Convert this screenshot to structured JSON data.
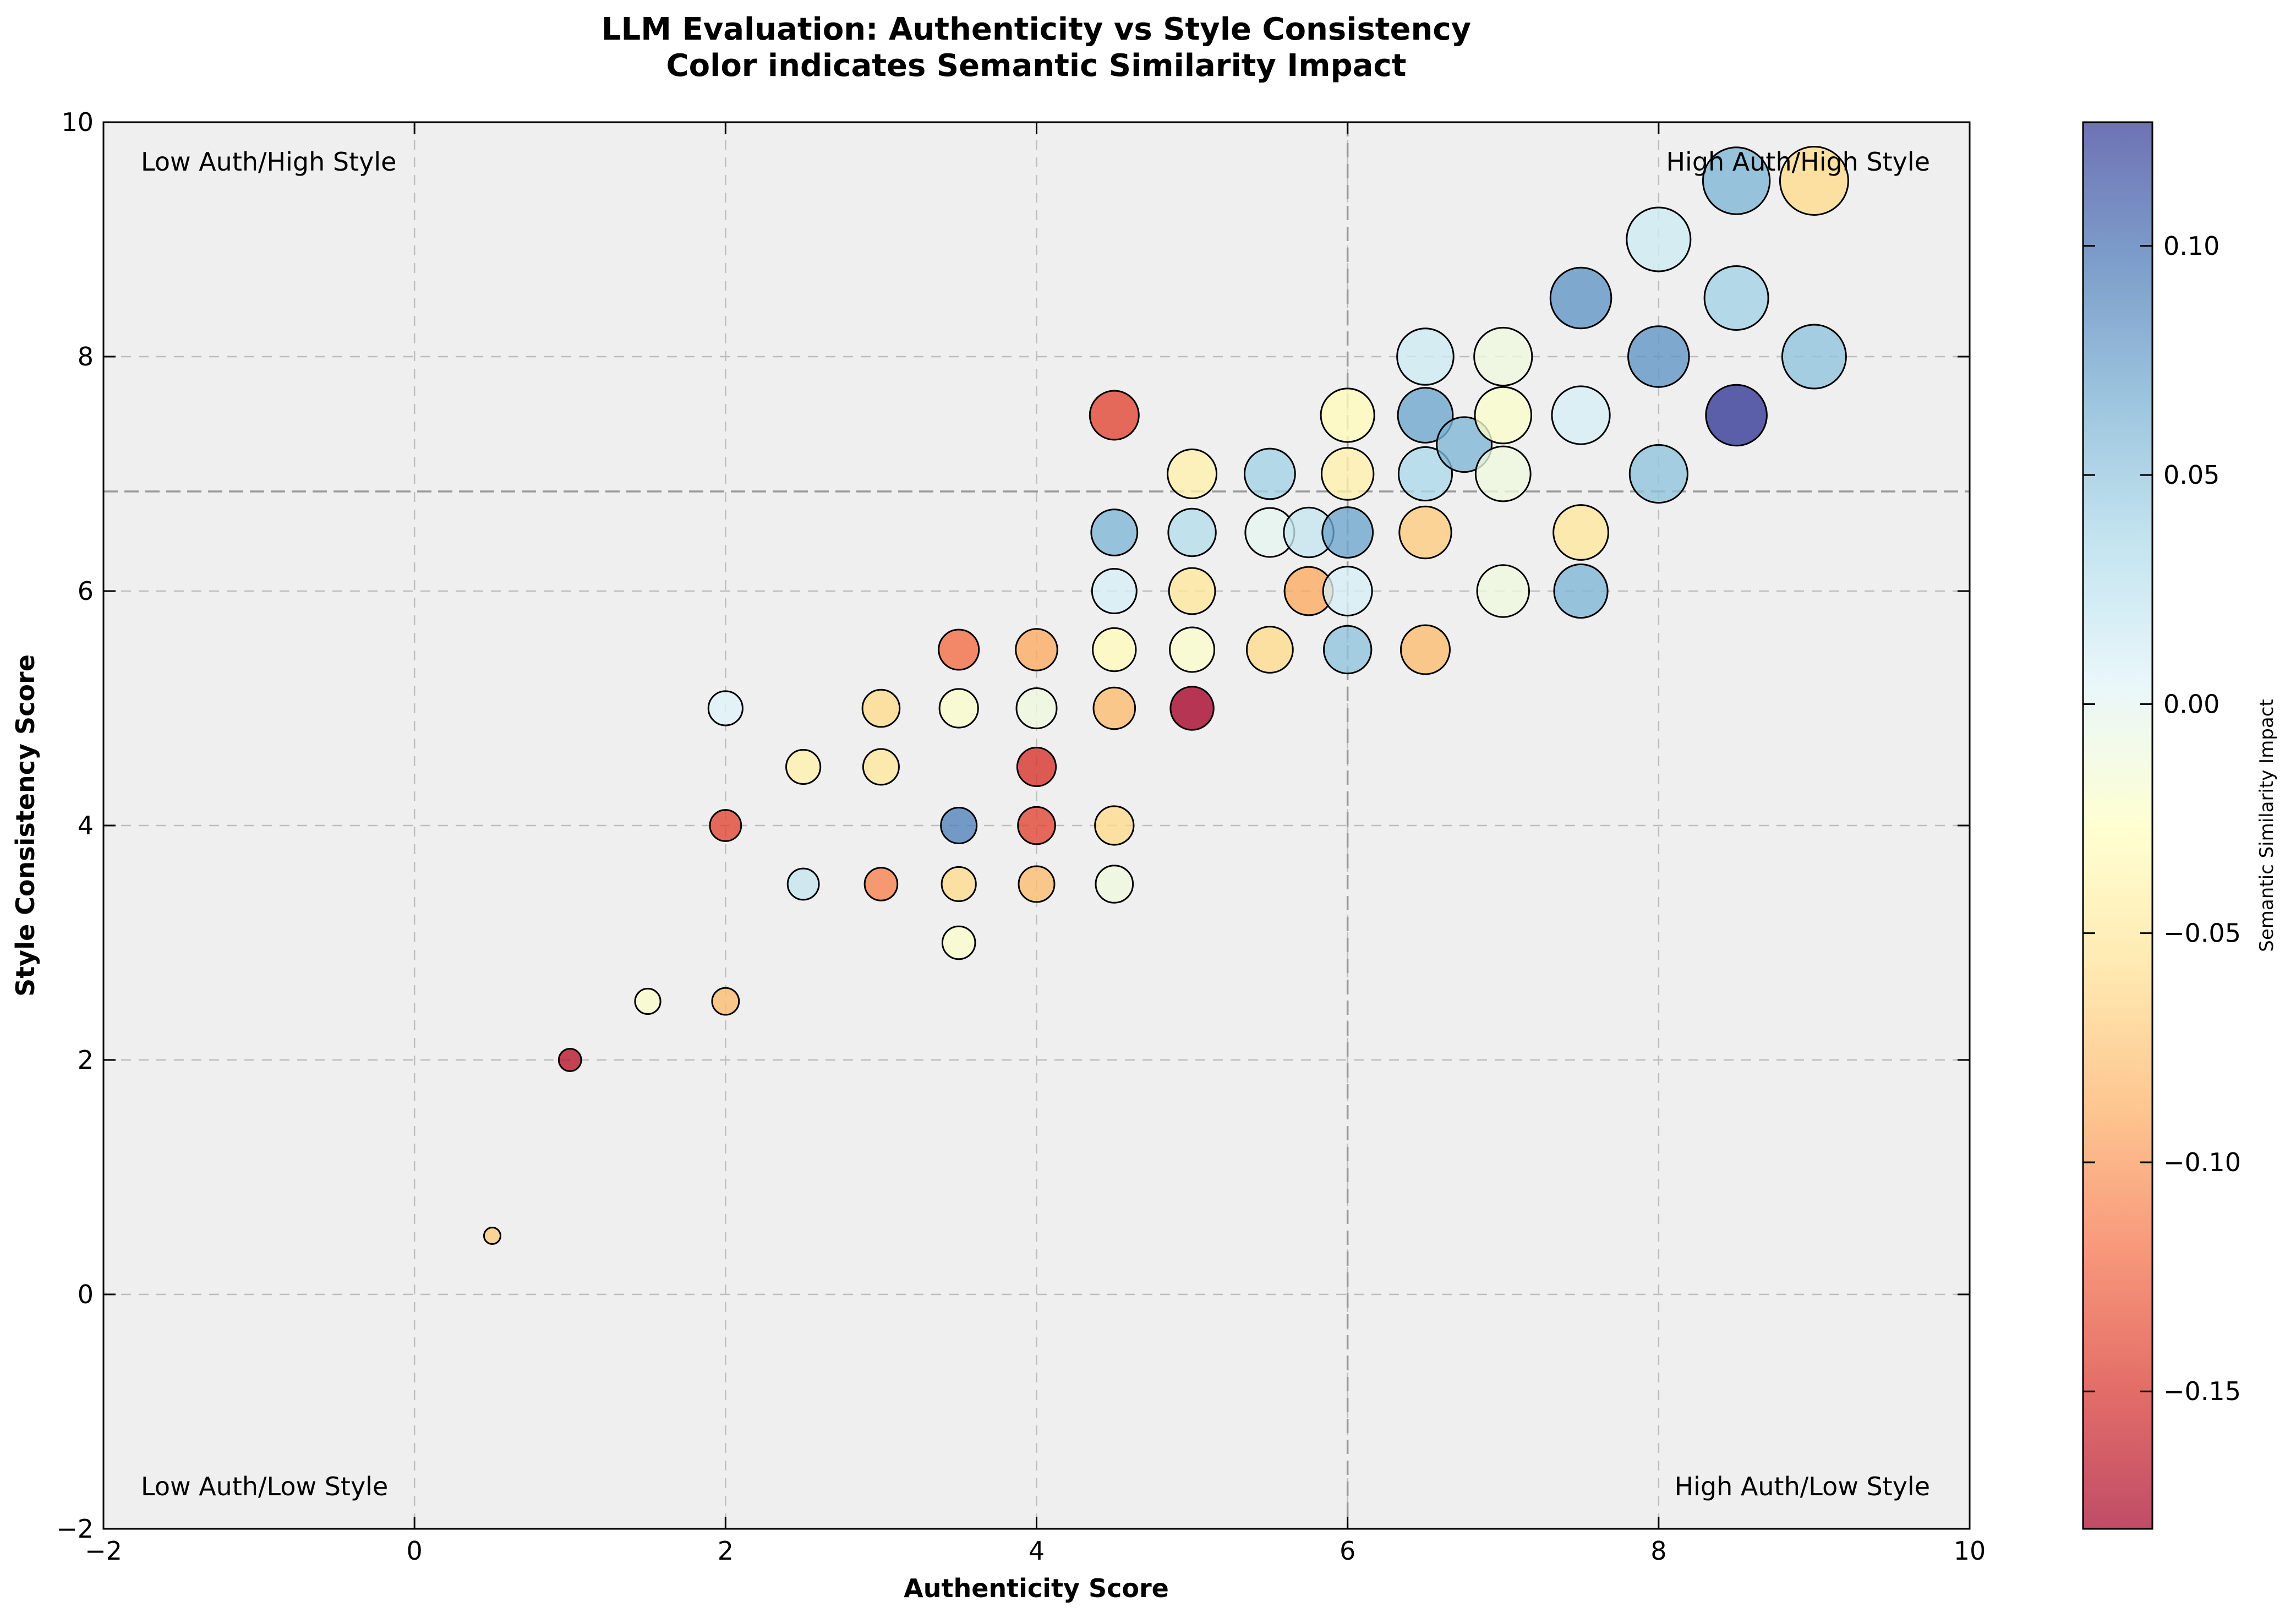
{
  "chart_data": {
    "type": "scatter",
    "title": "LLM Evaluation: Authenticity vs Style Consistency",
    "subtitle": "Color indicates Semantic Similarity Impact",
    "xlabel": "Authenticity Score",
    "ylabel": "Style Consistency Score",
    "xlim": [
      -2,
      10
    ],
    "ylim": [
      -2,
      10
    ],
    "xticks": [
      -2,
      0,
      2,
      4,
      6,
      8,
      10
    ],
    "yticks": [
      -2,
      0,
      2,
      4,
      6,
      8,
      10
    ],
    "grid": true,
    "reference_lines": {
      "x": 6.0,
      "y": 6.85
    },
    "quadrant_labels": {
      "top_left": "Low Auth/High Style",
      "top_right": "High Auth/High Style",
      "bottom_left": "Low Auth/Low Style",
      "bottom_right": "High Auth/Low Style"
    },
    "colorbar": {
      "label": "Semantic Similarity Impact",
      "range": [
        -0.18,
        0.127
      ],
      "ticks": [
        "0.10",
        "0.05",
        "0.00",
        "−0.05",
        "−0.10",
        "−0.15"
      ],
      "tick_values": [
        0.1,
        0.05,
        0.0,
        -0.05,
        -0.1,
        -0.15
      ],
      "colormap": "RdYlBu"
    },
    "points": [
      {
        "x": 0.5,
        "y": 0.5,
        "c": -0.07
      },
      {
        "x": 1.0,
        "y": 2.0,
        "c": -0.17
      },
      {
        "x": 1.5,
        "y": 2.5,
        "c": -0.02
      },
      {
        "x": 2.0,
        "y": 2.5,
        "c": -0.08
      },
      {
        "x": 2.0,
        "y": 4.0,
        "c": -0.14
      },
      {
        "x": 2.0,
        "y": 5.0,
        "c": 0.005
      },
      {
        "x": 2.5,
        "y": 3.5,
        "c": 0.02
      },
      {
        "x": 2.5,
        "y": 4.5,
        "c": -0.04
      },
      {
        "x": 3.0,
        "y": 3.5,
        "c": -0.11
      },
      {
        "x": 3.0,
        "y": 4.5,
        "c": -0.05
      },
      {
        "x": 3.0,
        "y": 5.0,
        "c": -0.06
      },
      {
        "x": 3.5,
        "y": 3.0,
        "c": -0.02
      },
      {
        "x": 3.5,
        "y": 3.5,
        "c": -0.06
      },
      {
        "x": 3.5,
        "y": 4.0,
        "c": 0.09
      },
      {
        "x": 3.5,
        "y": 5.0,
        "c": -0.02
      },
      {
        "x": 3.5,
        "y": 5.5,
        "c": -0.12
      },
      {
        "x": 4.0,
        "y": 3.5,
        "c": -0.08
      },
      {
        "x": 4.0,
        "y": 4.0,
        "c": -0.14
      },
      {
        "x": 4.0,
        "y": 4.5,
        "c": -0.15
      },
      {
        "x": 4.0,
        "y": 5.0,
        "c": -0.01
      },
      {
        "x": 4.0,
        "y": 5.5,
        "c": -0.09
      },
      {
        "x": 4.5,
        "y": 3.5,
        "c": -0.01
      },
      {
        "x": 4.5,
        "y": 4.0,
        "c": -0.06
      },
      {
        "x": 4.5,
        "y": 5.0,
        "c": -0.08
      },
      {
        "x": 4.5,
        "y": 5.5,
        "c": -0.03
      },
      {
        "x": 4.5,
        "y": 6.0,
        "c": 0.01
      },
      {
        "x": 4.5,
        "y": 6.5,
        "c": 0.06
      },
      {
        "x": 4.5,
        "y": 7.5,
        "c": -0.14
      },
      {
        "x": 5.0,
        "y": 5.0,
        "c": -0.18
      },
      {
        "x": 5.0,
        "y": 5.5,
        "c": -0.02
      },
      {
        "x": 5.0,
        "y": 6.0,
        "c": -0.05
      },
      {
        "x": 5.0,
        "y": 6.5,
        "c": 0.03
      },
      {
        "x": 5.0,
        "y": 7.0,
        "c": -0.04
      },
      {
        "x": 5.5,
        "y": 5.5,
        "c": -0.06
      },
      {
        "x": 5.5,
        "y": 6.5,
        "c": 0.0
      },
      {
        "x": 5.5,
        "y": 7.0,
        "c": 0.04
      },
      {
        "x": 5.75,
        "y": 6.0,
        "c": -0.09
      },
      {
        "x": 5.75,
        "y": 6.5,
        "c": 0.02
      },
      {
        "x": 6.0,
        "y": 5.5,
        "c": 0.05
      },
      {
        "x": 6.0,
        "y": 6.0,
        "c": 0.01
      },
      {
        "x": 6.0,
        "y": 6.5,
        "c": 0.07
      },
      {
        "x": 6.0,
        "y": 7.0,
        "c": -0.04
      },
      {
        "x": 6.0,
        "y": 7.5,
        "c": -0.03
      },
      {
        "x": 6.5,
        "y": 5.5,
        "c": -0.08
      },
      {
        "x": 6.5,
        "y": 6.5,
        "c": -0.07
      },
      {
        "x": 6.5,
        "y": 7.0,
        "c": 0.035
      },
      {
        "x": 6.5,
        "y": 7.5,
        "c": 0.07
      },
      {
        "x": 6.5,
        "y": 8.0,
        "c": 0.015
      },
      {
        "x": 6.75,
        "y": 7.25,
        "c": 0.06
      },
      {
        "x": 7.0,
        "y": 6.0,
        "c": -0.01
      },
      {
        "x": 7.0,
        "y": 7.0,
        "c": -0.01
      },
      {
        "x": 7.0,
        "y": 7.5,
        "c": -0.02
      },
      {
        "x": 7.0,
        "y": 8.0,
        "c": -0.01
      },
      {
        "x": 7.5,
        "y": 6.0,
        "c": 0.06
      },
      {
        "x": 7.5,
        "y": 6.5,
        "c": -0.05
      },
      {
        "x": 7.5,
        "y": 7.5,
        "c": 0.01
      },
      {
        "x": 7.5,
        "y": 8.5,
        "c": 0.08
      },
      {
        "x": 8.0,
        "y": 7.0,
        "c": 0.05
      },
      {
        "x": 8.0,
        "y": 8.0,
        "c": 0.08
      },
      {
        "x": 8.0,
        "y": 9.0,
        "c": 0.015
      },
      {
        "x": 8.5,
        "y": 7.5,
        "c": 0.127
      },
      {
        "x": 8.5,
        "y": 8.5,
        "c": 0.04
      },
      {
        "x": 8.5,
        "y": 9.5,
        "c": 0.06
      },
      {
        "x": 9.0,
        "y": 8.0,
        "c": 0.05
      },
      {
        "x": 9.0,
        "y": 9.5,
        "c": -0.06
      }
    ]
  }
}
